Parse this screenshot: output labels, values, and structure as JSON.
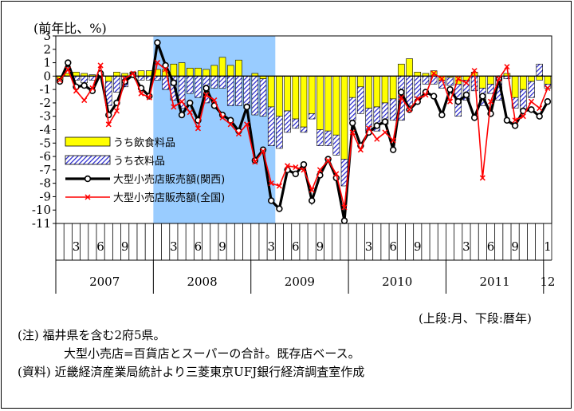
{
  "chart_data": {
    "type": "bar+line",
    "ylabel": "(前年比、%)",
    "ylim": [
      -11,
      3
    ],
    "yticks": [
      3,
      2,
      1,
      0,
      -1,
      -2,
      -3,
      -4,
      -5,
      -6,
      -7,
      -8,
      -9,
      -10,
      -11
    ],
    "highlight": {
      "from_index": 12,
      "to_index": 26,
      "color": "#99ccff"
    },
    "month_labels": [
      {
        "index": 2,
        "label": "3"
      },
      {
        "index": 5,
        "label": "6"
      },
      {
        "index": 8,
        "label": "9"
      },
      {
        "index": 14,
        "label": "3"
      },
      {
        "index": 17,
        "label": "6"
      },
      {
        "index": 20,
        "label": "9"
      },
      {
        "index": 26,
        "label": "3"
      },
      {
        "index": 29,
        "label": "6"
      },
      {
        "index": 32,
        "label": "9"
      },
      {
        "index": 38,
        "label": "3"
      },
      {
        "index": 41,
        "label": "6"
      },
      {
        "index": 44,
        "label": "9"
      },
      {
        "index": 50,
        "label": "3"
      },
      {
        "index": 53,
        "label": "6"
      },
      {
        "index": 56,
        "label": "9"
      },
      {
        "index": 60,
        "label": "1"
      }
    ],
    "year_labels": [
      {
        "label": "2007",
        "start": 0,
        "end": 11
      },
      {
        "label": "2008",
        "start": 12,
        "end": 23
      },
      {
        "label": "2009",
        "start": 24,
        "end": 35
      },
      {
        "label": "2010",
        "start": 36,
        "end": 47
      },
      {
        "label": "2011",
        "start": 48,
        "end": 59
      },
      {
        "label": "12",
        "start": 60,
        "end": 60
      }
    ],
    "series": [
      {
        "name": "うち飲食料品",
        "kind": "bar",
        "color": "#ffff00",
        "values": [
          -0.3,
          0.2,
          0.3,
          0.2,
          0.1,
          0.1,
          -0.4,
          0.3,
          0.2,
          0.3,
          0.4,
          0.4,
          0.5,
          0.5,
          0.9,
          1.0,
          0.6,
          0.6,
          0.5,
          0.8,
          1.4,
          0.8,
          1.2,
          0.0,
          0.2,
          -0.2,
          -2.3,
          -3.0,
          -2.6,
          -3.2,
          -3.8,
          -2.8,
          -4.0,
          -4.1,
          -4.4,
          -6.2,
          -1.6,
          -0.8,
          -2.4,
          -2.3,
          -2.0,
          -1.7,
          0.9,
          1.3,
          0.3,
          0.2,
          0.4,
          -0.3,
          -0.1,
          -0.6,
          -0.3,
          0.3,
          -0.9,
          -0.6,
          -0.2,
          0.2,
          -1.6,
          -1.0,
          -0.4,
          -0.3,
          -0.6
        ]
      },
      {
        "name": "うち衣料品",
        "kind": "bar",
        "color": "#3333cc",
        "pattern": "hatch",
        "values": [
          0.0,
          0.0,
          -0.3,
          -0.5,
          -0.3,
          0.0,
          -1.8,
          -1.2,
          -0.8,
          0.0,
          -0.3,
          -0.3,
          -0.3,
          -1.0,
          -1.8,
          -2.4,
          -1.3,
          -1.6,
          -2.0,
          -0.9,
          -0.9,
          -2.2,
          -2.2,
          -2.4,
          -2.9,
          -2.8,
          -2.9,
          -2.4,
          -1.6,
          -0.7,
          -0.4,
          -0.4,
          -1.2,
          -1.1,
          -1.5,
          -2.0,
          -1.7,
          -2.0,
          -1.7,
          -1.8,
          -1.6,
          -1.6,
          -3.3,
          -2.2,
          -1.6,
          -0.6,
          -0.6,
          -0.6,
          -0.6,
          -2.4,
          -1.5,
          -1.1,
          -1.3,
          -0.7,
          -1.6,
          -0.2,
          -0.8,
          -1.5,
          -1.2,
          0.9,
          -0.3
        ]
      },
      {
        "name": "大型小売店販売額(関西)",
        "kind": "line",
        "color": "#000000",
        "values": [
          -0.4,
          1.0,
          -0.8,
          -0.7,
          -1.1,
          0.2,
          -2.9,
          -2.0,
          -0.4,
          0.1,
          -0.9,
          -1.5,
          2.5,
          0.8,
          -0.5,
          -2.9,
          -2.0,
          -3.3,
          -0.9,
          -2.2,
          -2.9,
          -3.3,
          -4.1,
          -2.3,
          -6.3,
          -5.5,
          -9.3,
          -9.9,
          -7.0,
          -7.3,
          -6.6,
          -9.3,
          -7.4,
          -6.2,
          -7.6,
          -10.8,
          -3.5,
          -5.2,
          -4.2,
          -3.7,
          -3.4,
          -5.5,
          -1.2,
          -2.5,
          -1.9,
          -1.2,
          -1.5,
          -2.9,
          -1.0,
          -1.9,
          -1.4,
          -3.1,
          -1.5,
          -2.8,
          -0.2,
          -3.3,
          -3.7,
          -2.6,
          -2.5,
          -3.0,
          -1.9
        ]
      },
      {
        "name": "大型小売店販売額(全国)",
        "kind": "line",
        "color": "#ff0000",
        "values": [
          -0.3,
          0.5,
          -1.1,
          -1.8,
          -0.9,
          0.8,
          -3.6,
          -2.6,
          -0.2,
          0.2,
          -1.3,
          -1.6,
          1.0,
          0.5,
          -2.3,
          -1.9,
          -2.7,
          -3.9,
          -1.4,
          -1.8,
          -3.1,
          -3.6,
          -4.3,
          -3.6,
          -6.4,
          -5.6,
          -8.0,
          -8.2,
          -6.7,
          -6.8,
          -7.0,
          -8.5,
          -7.0,
          -6.3,
          -7.3,
          -9.8,
          -4.2,
          -5.5,
          -3.9,
          -4.7,
          -4.2,
          -4.8,
          -1.6,
          -2.5,
          -1.7,
          -1.4,
          0.2,
          -0.2,
          -1.9,
          -0.2,
          -0.5,
          0.4,
          -7.6,
          -1.9,
          -0.2,
          0.7,
          -3.3,
          -3.0,
          -1.9,
          -2.4,
          -0.9
        ]
      }
    ],
    "legend_position": "left-middle"
  },
  "notes": {
    "caption_right": "(上段:月、下段:暦年)",
    "note_line1": "(注) 福井県を含む2府5県。",
    "note_line2": "大型小売店=百貨店とスーパーの合計。既存店ベース。",
    "note_line3": "(資料) 近畿経済産業局統計より三菱東京UFJ銀行経済調査室作成"
  }
}
